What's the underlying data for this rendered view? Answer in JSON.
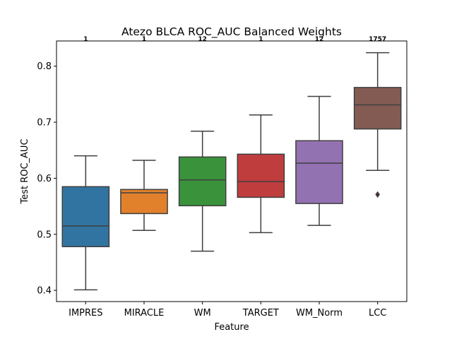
{
  "chart_data": {
    "type": "box",
    "title": "Atezo BLCA ROC_AUC Balanced Weights",
    "xlabel": "Feature",
    "ylabel": "Test ROC_AUC",
    "ylim": [
      0.38,
      0.845
    ],
    "yticks": [
      "0.4",
      "0.5",
      "0.6",
      "0.7",
      "0.8"
    ],
    "grid": false,
    "legend": "none",
    "categories": [
      "IMPRES",
      "MIRACLE",
      "WM",
      "TARGET",
      "WM_Norm",
      "LCC"
    ],
    "counts": [
      "1",
      "1",
      "12",
      "1",
      "12",
      "1757"
    ],
    "colors": [
      "#3274a1",
      "#e1812c",
      "#3a923a",
      "#c03d3e",
      "#9372b2",
      "#845b53"
    ],
    "boxes": [
      {
        "name": "IMPRES",
        "whisker_low": 0.401,
        "q1": 0.478,
        "median": 0.515,
        "q3": 0.585,
        "whisker_high": 0.64,
        "outliers": []
      },
      {
        "name": "MIRACLE",
        "whisker_low": 0.507,
        "q1": 0.537,
        "median": 0.574,
        "q3": 0.58,
        "whisker_high": 0.632,
        "outliers": []
      },
      {
        "name": "WM",
        "whisker_low": 0.47,
        "q1": 0.551,
        "median": 0.597,
        "q3": 0.638,
        "whisker_high": 0.684,
        "outliers": []
      },
      {
        "name": "TARGET",
        "whisker_low": 0.503,
        "q1": 0.566,
        "median": 0.594,
        "q3": 0.643,
        "whisker_high": 0.713,
        "outliers": []
      },
      {
        "name": "WM_Norm",
        "whisker_low": 0.516,
        "q1": 0.555,
        "median": 0.627,
        "q3": 0.667,
        "whisker_high": 0.746,
        "outliers": []
      },
      {
        "name": "LCC",
        "whisker_low": 0.614,
        "q1": 0.688,
        "median": 0.731,
        "q3": 0.762,
        "whisker_high": 0.824,
        "outliers": [
          0.571
        ]
      }
    ]
  }
}
